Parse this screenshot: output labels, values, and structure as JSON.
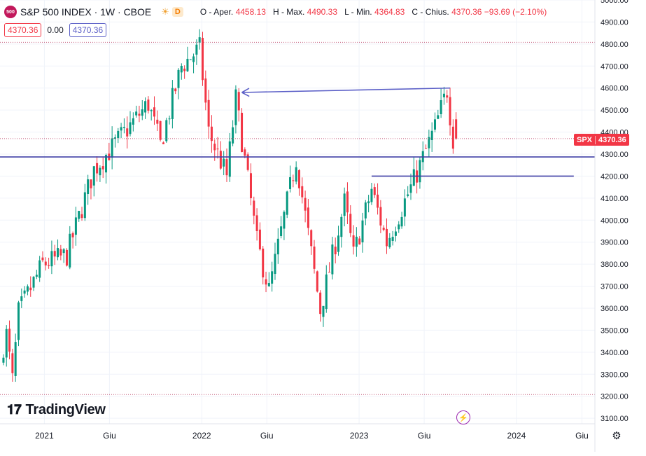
{
  "header": {
    "badge": "500",
    "title": "S&P 500 INDEX · 1W · CBOE",
    "interval_badge": "D",
    "open_label": "O - Aper.",
    "open": "4458.13",
    "high_label": "H - Max.",
    "high": "4490.33",
    "low_label": "L - Min.",
    "low": "4364.83",
    "close_label": "C - Chius.",
    "close": "4370.36",
    "change": "−93.69 (−2.10%)"
  },
  "row2": {
    "bid": "4370.36",
    "spread": "0.00",
    "ask": "4370.36"
  },
  "logo": {
    "text": "TradingView"
  },
  "price_badge": {
    "symbol": "SPX",
    "value": "4370.36"
  },
  "colors": {
    "up": "#089981",
    "down": "#f23645",
    "lines": "#3f3fa6",
    "axis_text": "#131722"
  },
  "icons": {
    "logo": "tradingview-logo-icon",
    "flash": "lightning-icon",
    "gear": "gear-icon",
    "sun": "sun-icon"
  },
  "chart_data": {
    "type": "candlestick",
    "title": "S&P 500 INDEX",
    "interval": "1W",
    "ylim": [
      3075,
      5000
    ],
    "y_ticks": [
      3100,
      3200,
      3300,
      3400,
      3500,
      3600,
      3700,
      3800,
      3900,
      4000,
      4100,
      4200,
      4300,
      4400,
      4500,
      4600,
      4700,
      4800,
      4900,
      5000
    ],
    "y_tick_labels": [
      "3100.00",
      "3200.00",
      "3300.00",
      "3400.00",
      "3500.00",
      "3600.00",
      "3700.00",
      "3800.00",
      "3900.00",
      "4000.00",
      "4100.00",
      "4200.00",
      "4300.00",
      "4400.00",
      "4500.00",
      "4600.00",
      "4700.00",
      "4800.00",
      "4900.00",
      "5000.00"
    ],
    "x_labels": [
      {
        "label": "2021",
        "date": "2021-01-01"
      },
      {
        "label": "Giu",
        "date": "2021-06-01"
      },
      {
        "label": "2022",
        "date": "2022-01-01"
      },
      {
        "label": "Giu",
        "date": "2022-06-01"
      },
      {
        "label": "2023",
        "date": "2023-01-01"
      },
      {
        "label": "Giu",
        "date": "2023-06-01"
      },
      {
        "label": "2024",
        "date": "2024-01-01"
      },
      {
        "label": "Giu",
        "date": "2024-06-01"
      }
    ],
    "x_range": [
      "2020-09-20",
      "2024-07-01"
    ],
    "first_week": "2020-09-28",
    "last_week": "2023-08-14",
    "price_path": [
      {
        "date": "2020-09-28",
        "price": 3380
      },
      {
        "date": "2020-10-12",
        "price": 3480
      },
      {
        "date": "2020-10-26",
        "price": 3270
      },
      {
        "date": "2020-11-09",
        "price": 3580
      },
      {
        "date": "2021-01-04",
        "price": 3800
      },
      {
        "date": "2021-03-01",
        "price": 3840
      },
      {
        "date": "2021-05-03",
        "price": 4230
      },
      {
        "date": "2021-07-05",
        "price": 4380
      },
      {
        "date": "2021-09-06",
        "price": 4530
      },
      {
        "date": "2021-10-04",
        "price": 4340
      },
      {
        "date": "2021-11-22",
        "price": 4700
      },
      {
        "date": "2022-01-03",
        "price": 4780
      },
      {
        "date": "2022-01-24",
        "price": 4400
      },
      {
        "date": "2022-03-07",
        "price": 4200
      },
      {
        "date": "2022-03-28",
        "price": 4550
      },
      {
        "date": "2022-05-16",
        "price": 3900
      },
      {
        "date": "2022-06-13",
        "price": 3680
      },
      {
        "date": "2022-08-15",
        "price": 4280
      },
      {
        "date": "2022-10-10",
        "price": 3590
      },
      {
        "date": "2022-12-05",
        "price": 4080
      },
      {
        "date": "2022-12-26",
        "price": 3840
      },
      {
        "date": "2023-02-06",
        "price": 4140
      },
      {
        "date": "2023-03-13",
        "price": 3900
      },
      {
        "date": "2023-05-15",
        "price": 4180
      },
      {
        "date": "2023-07-03",
        "price": 4420
      },
      {
        "date": "2023-07-31",
        "price": 4590
      },
      {
        "date": "2023-08-14",
        "price": 4370.36
      }
    ],
    "last_candle": {
      "open": 4458.13,
      "high": 4490.33,
      "low": 4364.83,
      "close": 4370.36
    },
    "horizontal_lines": [
      {
        "price": 4287
      },
      {
        "price": 4200,
        "from": "2023-01-30",
        "to": "2024-05-13"
      }
    ],
    "arrow": {
      "from": {
        "date": "2023-07-31",
        "price": 4600
      },
      "to": {
        "date": "2022-04-04",
        "price": 4580
      }
    },
    "dotted_levels": [
      4808,
      4370.36,
      3208
    ]
  }
}
